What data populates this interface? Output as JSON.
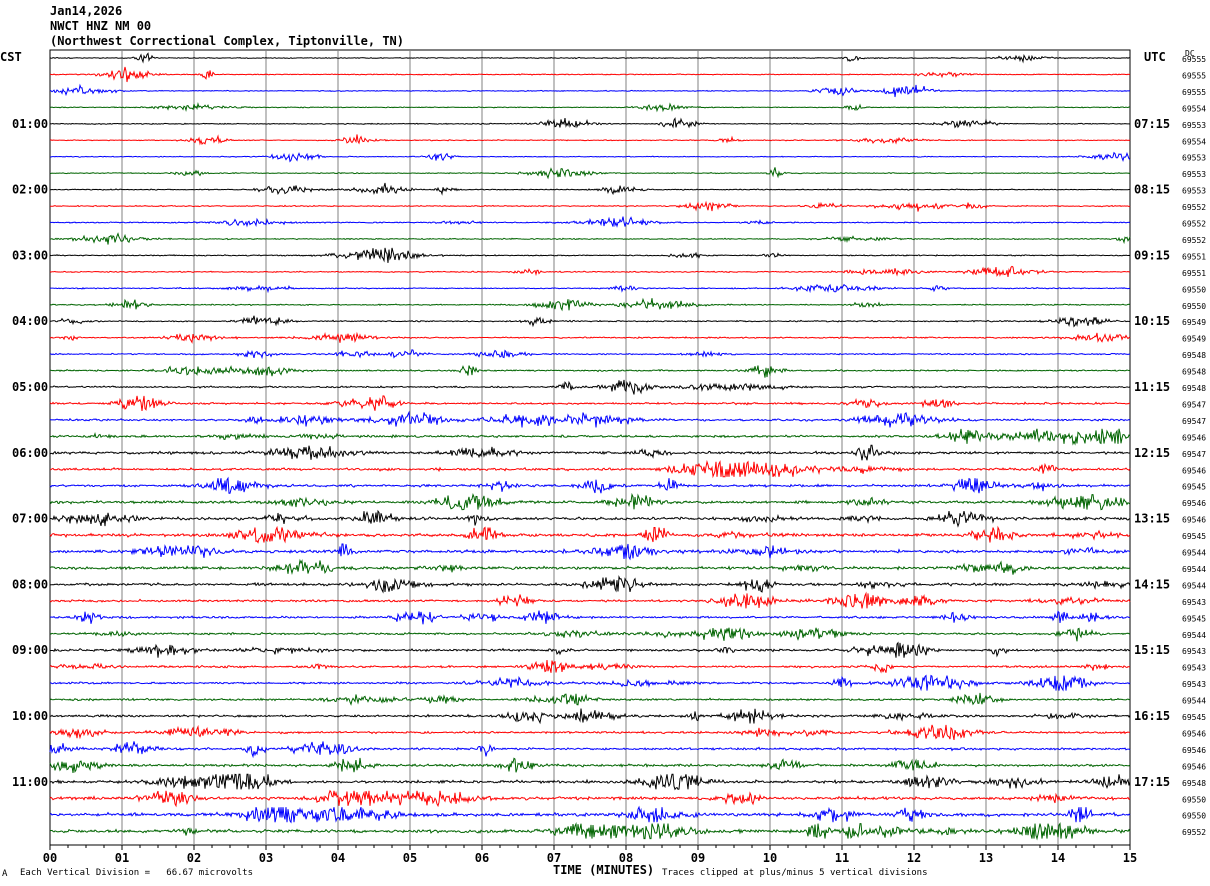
{
  "header": {
    "date": "Jan14,2026",
    "station": "NWCT HNZ NM 00",
    "location": "(Northwest Correctional Complex, Tiptonville, TN)"
  },
  "left_zone": "CST",
  "right_zone": "UTC",
  "dc_label": "DC",
  "footer": {
    "scale_note": "Each Vertical Division =   66.67 microvolts",
    "clip_note": "Traces clipped at plus/minus 5 vertical divisions",
    "corner_mark": "A"
  },
  "chart_data": {
    "type": "line",
    "title": "",
    "xlabel": "TIME (MINUTES)",
    "ylabel": "",
    "xlim": [
      0,
      15
    ],
    "x_ticks": [
      "00",
      "01",
      "02",
      "03",
      "04",
      "05",
      "06",
      "07",
      "08",
      "09",
      "10",
      "11",
      "12",
      "13",
      "14",
      "15"
    ],
    "grid": "vertical lines every minute",
    "trace_colors": [
      "#000000",
      "#ff0000",
      "#0000ff",
      "#006400"
    ],
    "left_hour_labels": [
      "01:00",
      "02:00",
      "03:00",
      "04:00",
      "05:00",
      "06:00",
      "07:00",
      "08:00",
      "09:00",
      "10:00",
      "11:00"
    ],
    "right_hour_labels": [
      "07:15",
      "08:15",
      "09:15",
      "10:15",
      "11:15",
      "12:15",
      "13:15",
      "14:15",
      "15:15",
      "16:15",
      "17:15"
    ],
    "label_first_row": 4,
    "row_count": 48,
    "trace_offsets": [
      "69555",
      "69555",
      "69555",
      "69554",
      "69553",
      "69554",
      "69553",
      "69553",
      "69553",
      "69552",
      "69552",
      "69552",
      "69551",
      "69551",
      "69550",
      "69550",
      "69549",
      "69549",
      "69548",
      "69548",
      "69548",
      "69547",
      "69547",
      "69546",
      "69547",
      "69546",
      "69545",
      "69546",
      "69546",
      "69545",
      "69544",
      "69544",
      "69544",
      "69543",
      "69545",
      "69544",
      "69543",
      "69543",
      "69543",
      "69544",
      "69545",
      "69546",
      "69546",
      "69546",
      "69548",
      "69550",
      "69550",
      "69552"
    ],
    "activity_profile": [
      0.5,
      0.5,
      0.5,
      0.5,
      0.5,
      0.5,
      0.5,
      0.5,
      0.5,
      0.6,
      0.6,
      0.6,
      0.6,
      0.6,
      0.6,
      0.6,
      0.7,
      0.7,
      0.7,
      0.8,
      0.9,
      1.0,
      1.1,
      1.2,
      1.3,
      1.3,
      1.3,
      1.4,
      1.5,
      1.5,
      1.5,
      1.5,
      1.4,
      1.2,
      1.1,
      1.1,
      1.2,
      1.1,
      1.1,
      1.0,
      1.1,
      1.1,
      1.2,
      1.3,
      1.4,
      1.6,
      1.7,
      1.7
    ]
  }
}
